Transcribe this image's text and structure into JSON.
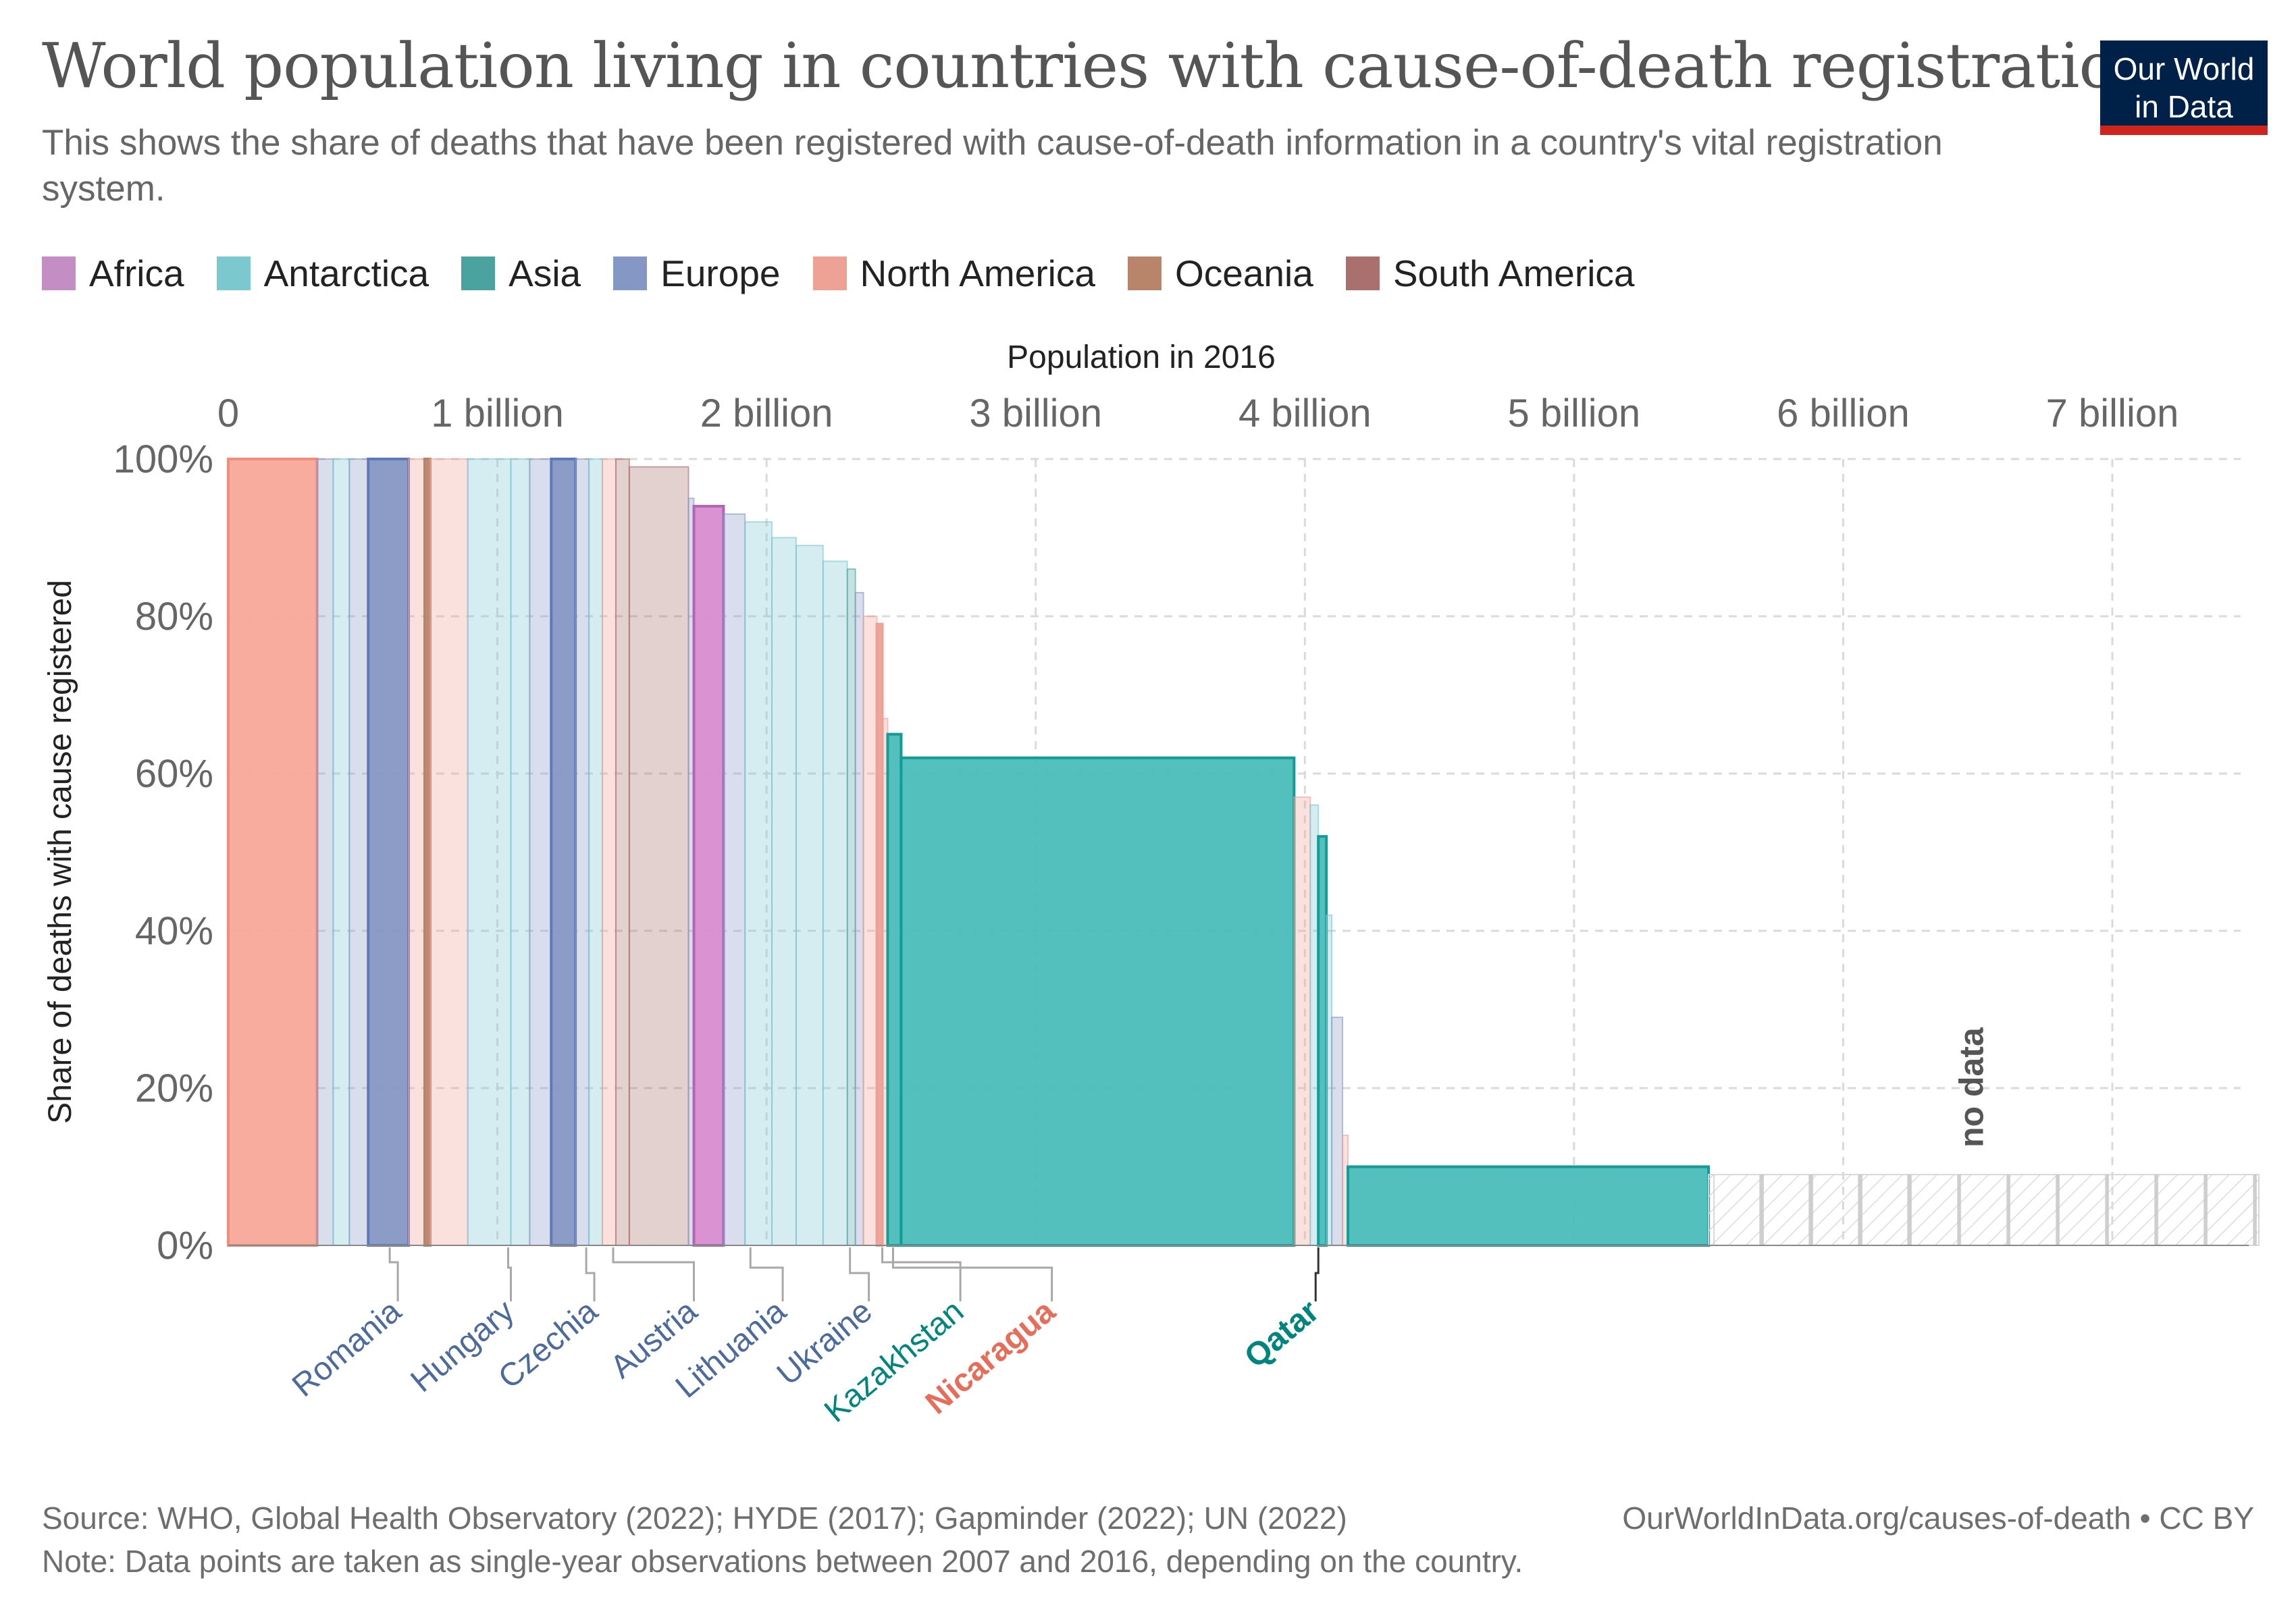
{
  "header": {
    "title": "World population living in countries with cause-of-death registration",
    "subtitle": "This shows the share of deaths that have been registered with cause-of-death information in a country's vital registration system.",
    "logo_line1": "Our World",
    "logo_line2": "in Data"
  },
  "legend": [
    {
      "label": "Africa",
      "color": "#c48dc4"
    },
    {
      "label": "Antarctica",
      "color": "#7cc8cf"
    },
    {
      "label": "Asia",
      "color": "#4aa39f"
    },
    {
      "label": "Europe",
      "color": "#8597c4"
    },
    {
      "label": "North America",
      "color": "#eea296"
    },
    {
      "label": "Oceania",
      "color": "#b8856b"
    },
    {
      "label": "South America",
      "color": "#a9706e"
    }
  ],
  "chart_data": {
    "type": "bar",
    "variable_width": true,
    "xlabel": "Population in 2016",
    "ylabel": "Share of deaths with cause registered",
    "x_axis_position": "top",
    "xlim": [
      0,
      7.5
    ],
    "x_ticks": [
      {
        "value": 0,
        "label": "0"
      },
      {
        "value": 1,
        "label": "1 billion"
      },
      {
        "value": 2,
        "label": "2 billion"
      },
      {
        "value": 3,
        "label": "3 billion"
      },
      {
        "value": 4,
        "label": "4 billion"
      },
      {
        "value": 5,
        "label": "5 billion"
      },
      {
        "value": 6,
        "label": "6 billion"
      },
      {
        "value": 7,
        "label": "7 billion"
      }
    ],
    "ylim": [
      0,
      100
    ],
    "y_ticks": [
      {
        "value": 0,
        "label": "0%"
      },
      {
        "value": 20,
        "label": "20%"
      },
      {
        "value": 40,
        "label": "40%"
      },
      {
        "value": 60,
        "label": "60%"
      },
      {
        "value": 80,
        "label": "80%"
      },
      {
        "value": 100,
        "label": "100%"
      }
    ],
    "grid": true,
    "bars": [
      {
        "x0": 0.0,
        "x1": 0.33,
        "y": 100,
        "region": "North America",
        "highlight": true
      },
      {
        "x0": 0.33,
        "x1": 0.39,
        "y": 100,
        "region": "Europe",
        "highlight": false
      },
      {
        "x0": 0.39,
        "x1": 0.45,
        "y": 100,
        "region": "Antarctica",
        "highlight": false
      },
      {
        "x0": 0.45,
        "x1": 0.52,
        "y": 100,
        "region": "Europe",
        "highlight": false
      },
      {
        "x0": 0.52,
        "x1": 0.67,
        "y": 100,
        "region": "Europe",
        "highlight": true
      },
      {
        "x0": 0.67,
        "x1": 0.73,
        "y": 100,
        "region": "North America",
        "highlight": false
      },
      {
        "x0": 0.73,
        "x1": 0.75,
        "y": 100,
        "region": "Oceania",
        "highlight": true
      },
      {
        "x0": 0.75,
        "x1": 0.89,
        "y": 100,
        "region": "North America",
        "highlight": false
      },
      {
        "x0": 0.89,
        "x1": 1.05,
        "y": 100,
        "region": "Antarctica",
        "highlight": false
      },
      {
        "x0": 1.05,
        "x1": 1.12,
        "y": 100,
        "region": "Antarctica",
        "highlight": false
      },
      {
        "x0": 1.12,
        "x1": 1.2,
        "y": 100,
        "region": "Europe",
        "highlight": false
      },
      {
        "x0": 1.2,
        "x1": 1.29,
        "y": 100,
        "region": "Europe",
        "highlight": true
      },
      {
        "x0": 1.29,
        "x1": 1.34,
        "y": 100,
        "region": "Europe",
        "highlight": false
      },
      {
        "x0": 1.34,
        "x1": 1.39,
        "y": 100,
        "region": "Antarctica",
        "highlight": false
      },
      {
        "x0": 1.39,
        "x1": 1.44,
        "y": 100,
        "region": "North America",
        "highlight": false
      },
      {
        "x0": 1.44,
        "x1": 1.49,
        "y": 100,
        "region": "South America",
        "highlight": false
      },
      {
        "x0": 1.49,
        "x1": 1.71,
        "y": 99,
        "region": "South America",
        "highlight": false
      },
      {
        "x0": 1.71,
        "x1": 1.73,
        "y": 95,
        "region": "Europe",
        "highlight": false
      },
      {
        "x0": 1.73,
        "x1": 1.84,
        "y": 94,
        "region": "Africa",
        "highlight": true
      },
      {
        "x0": 1.84,
        "x1": 1.92,
        "y": 93,
        "region": "Europe",
        "highlight": false
      },
      {
        "x0": 1.92,
        "x1": 2.02,
        "y": 92,
        "region": "Antarctica",
        "highlight": false
      },
      {
        "x0": 2.02,
        "x1": 2.11,
        "y": 90,
        "region": "Antarctica",
        "highlight": false
      },
      {
        "x0": 2.11,
        "x1": 2.21,
        "y": 89,
        "region": "Antarctica",
        "highlight": false
      },
      {
        "x0": 2.21,
        "x1": 2.3,
        "y": 87,
        "region": "Antarctica",
        "highlight": false
      },
      {
        "x0": 2.3,
        "x1": 2.33,
        "y": 86,
        "region": "Asia",
        "highlight": false
      },
      {
        "x0": 2.33,
        "x1": 2.36,
        "y": 83,
        "region": "Europe",
        "highlight": false
      },
      {
        "x0": 2.36,
        "x1": 2.41,
        "y": 80,
        "region": "North America",
        "highlight": false
      },
      {
        "x0": 2.41,
        "x1": 2.43,
        "y": 79,
        "region": "North America",
        "highlight": true
      },
      {
        "x0": 2.43,
        "x1": 2.45,
        "y": 67,
        "region": "North America",
        "highlight": false
      },
      {
        "x0": 2.45,
        "x1": 2.5,
        "y": 65,
        "region": "Asia",
        "highlight": true
      },
      {
        "x0": 2.5,
        "x1": 3.96,
        "y": 62,
        "region": "Asia",
        "highlight": true
      },
      {
        "x0": 3.96,
        "x1": 4.02,
        "y": 57,
        "region": "North America",
        "highlight": false
      },
      {
        "x0": 4.02,
        "x1": 4.05,
        "y": 56,
        "region": "Antarctica",
        "highlight": false
      },
      {
        "x0": 4.05,
        "x1": 4.08,
        "y": 52,
        "region": "Asia",
        "highlight": true
      },
      {
        "x0": 4.08,
        "x1": 4.1,
        "y": 42,
        "region": "Antarctica",
        "highlight": false
      },
      {
        "x0": 4.1,
        "x1": 4.14,
        "y": 29,
        "region": "Europe",
        "highlight": false
      },
      {
        "x0": 4.14,
        "x1": 4.16,
        "y": 14,
        "region": "North America",
        "highlight": false
      },
      {
        "x0": 4.16,
        "x1": 5.5,
        "y": 10,
        "region": "Asia",
        "highlight": true
      }
    ],
    "no_data": {
      "x0": 5.5,
      "x1": 7.55,
      "y": 9,
      "label": "no data"
    },
    "country_labels": [
      {
        "label": "Romania",
        "x": 0.63,
        "region": "Europe"
      },
      {
        "label": "Hungary",
        "x": 1.05,
        "region": "Europe"
      },
      {
        "label": "Czechia",
        "x": 1.36,
        "region": "Europe"
      },
      {
        "label": "Austria",
        "x": 1.73,
        "region": "Europe"
      },
      {
        "label": "Lithuania",
        "x": 2.06,
        "region": "Europe"
      },
      {
        "label": "Ukraine",
        "x": 2.38,
        "region": "Europe"
      },
      {
        "label": "Kazakhstan",
        "x": 2.72,
        "region": "Asia"
      },
      {
        "label": "Nicaragua",
        "x": 3.06,
        "region": "North America"
      },
      {
        "label": "Qatar",
        "x": 4.04,
        "region": "Asia"
      }
    ],
    "label_colors": {
      "Europe": "#4c6a9c",
      "Asia": "#00847e",
      "North America": "#e56e5a"
    }
  },
  "footer": {
    "source": "Source: WHO, Global Health Observatory (2022); HYDE (2017); Gapminder (2022); UN (2022)",
    "url": "OurWorldInData.org/causes-of-death • CC BY",
    "note": "Note: Data points are taken as single-year observations between 2007 and 2016, depending on the country."
  }
}
